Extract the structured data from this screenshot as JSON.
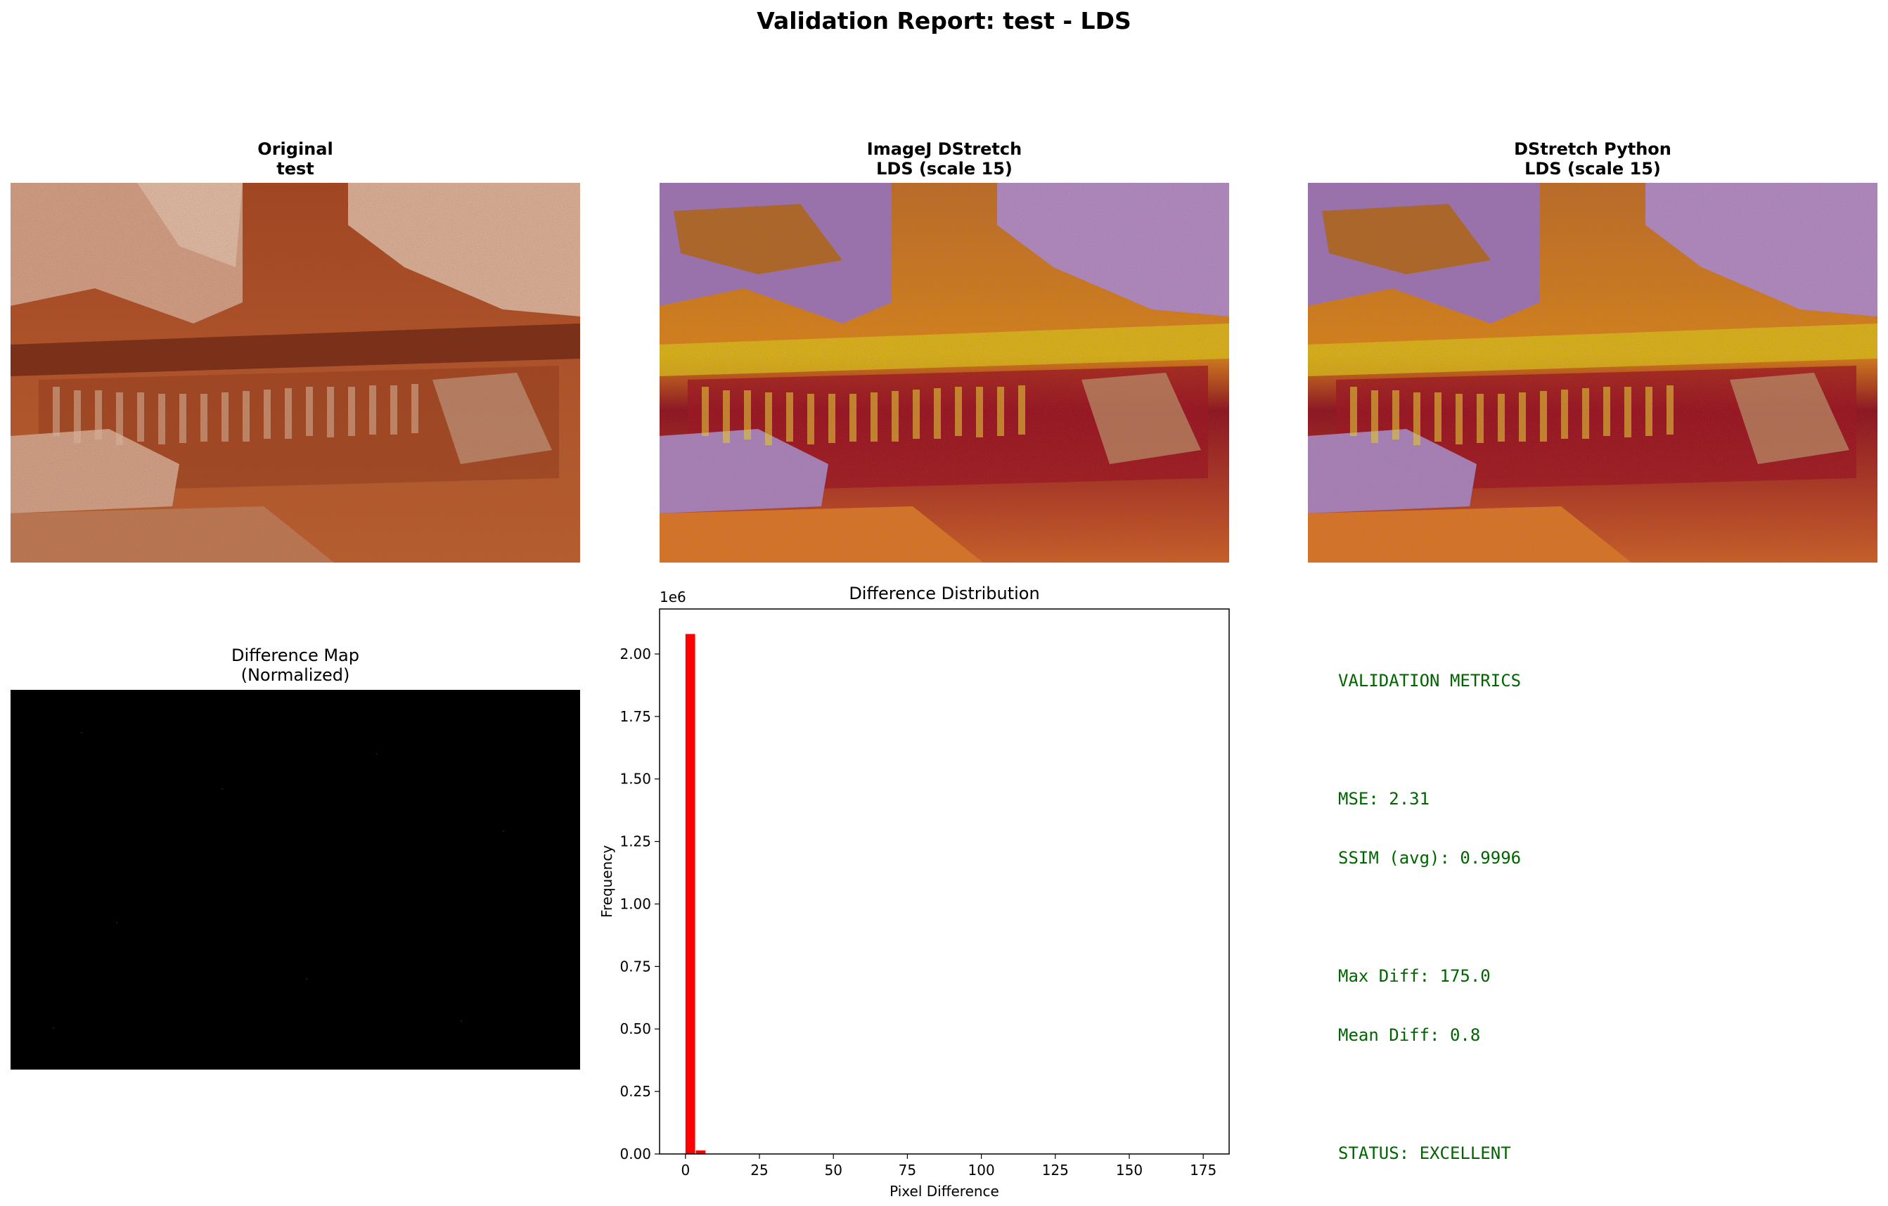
{
  "suptitle": "Validation Report: test - LDS",
  "panels": {
    "original": {
      "title_line1": "Original",
      "title_line2": "test"
    },
    "imagej": {
      "title_line1": "ImageJ DStretch",
      "title_line2": "LDS (scale 15)"
    },
    "python": {
      "title_line1": "DStretch Python",
      "title_line2": "LDS (scale 15)"
    },
    "diffmap": {
      "title_line1": "Difference Map",
      "title_line2": "(Normalized)"
    }
  },
  "metrics": {
    "heading": "VALIDATION METRICS",
    "mse": "MSE: 2.31",
    "ssim": "SSIM (avg): 0.9996",
    "max_diff": "Max Diff: 175.0",
    "mean_diff": "Mean Diff: 0.8",
    "status": "STATUS: EXCELLENT",
    "color": "#006400"
  },
  "chart_data": {
    "type": "bar",
    "title": "Difference Distribution",
    "xlabel": "Pixel Difference",
    "ylabel": "Frequency",
    "y_offset_text": "1e6",
    "xlim": [
      -8.75,
      183.75
    ],
    "ylim": [
      0,
      2180000
    ],
    "x_ticks": [
      0,
      25,
      50,
      75,
      100,
      125,
      150,
      175
    ],
    "y_ticks": [
      0.0,
      0.25,
      0.5,
      0.75,
      1.0,
      1.25,
      1.5,
      1.75,
      2.0
    ],
    "y_tick_labels": [
      "0.00",
      "0.25",
      "0.50",
      "0.75",
      "1.00",
      "1.25",
      "1.50",
      "1.75",
      "2.00"
    ],
    "bin_width": 3.5,
    "bins": [
      {
        "x0": 0.0,
        "count": 2080000
      },
      {
        "x0": 3.5,
        "count": 14000
      },
      {
        "x0": 7.0,
        "count": 1200
      },
      {
        "x0": 10.5,
        "count": 300
      }
    ],
    "bar_color": "#ff0000"
  }
}
